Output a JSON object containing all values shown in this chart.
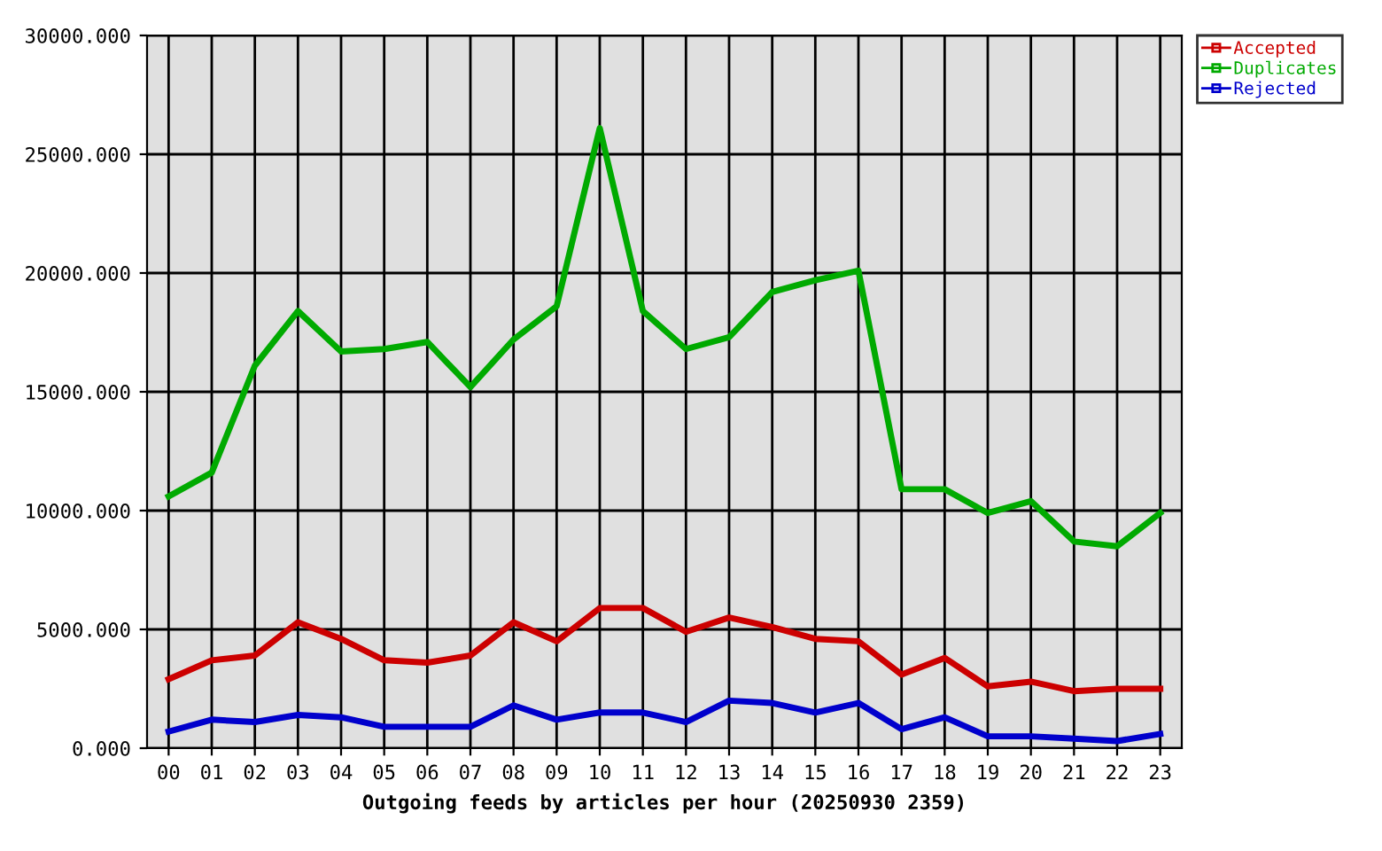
{
  "chart_data": {
    "type": "line",
    "xlabel": "Outgoing feeds by articles per hour (20250930 2359)",
    "categories": [
      "00",
      "01",
      "02",
      "03",
      "04",
      "05",
      "06",
      "07",
      "08",
      "09",
      "10",
      "11",
      "12",
      "13",
      "14",
      "15",
      "16",
      "17",
      "18",
      "19",
      "20",
      "21",
      "22",
      "23"
    ],
    "series": [
      {
        "name": "Accepted",
        "color": "#cc0000",
        "values": [
          2900,
          3700,
          3900,
          5300,
          4600,
          3700,
          3600,
          3900,
          5300,
          4500,
          5900,
          5900,
          4900,
          5500,
          5100,
          4600,
          4500,
          3100,
          3800,
          2600,
          2800,
          2400,
          2500,
          2500
        ]
      },
      {
        "name": "Duplicates",
        "color": "#00aa00",
        "values": [
          10600,
          11600,
          16100,
          18400,
          16700,
          16800,
          17100,
          15200,
          17200,
          18600,
          26100,
          18400,
          16800,
          17300,
          19200,
          19700,
          20100,
          10900,
          10900,
          9900,
          10400,
          8700,
          8500,
          9900
        ]
      },
      {
        "name": "Rejected",
        "color": "#0000cc",
        "values": [
          700,
          1200,
          1100,
          1400,
          1300,
          900,
          900,
          900,
          1800,
          1200,
          1500,
          1500,
          1100,
          2000,
          1900,
          1500,
          1900,
          800,
          1300,
          500,
          500,
          400,
          300,
          600
        ]
      }
    ],
    "ylim": [
      0,
      30000
    ],
    "yticks": [
      {
        "value": 0,
        "label": "0.000"
      },
      {
        "value": 5000,
        "label": "5000.000"
      },
      {
        "value": 10000,
        "label": "10000.000"
      },
      {
        "value": 15000,
        "label": "15000.000"
      },
      {
        "value": 20000,
        "label": "20000.000"
      },
      {
        "value": 25000,
        "label": "25000.000"
      },
      {
        "value": 30000,
        "label": "30000.000"
      }
    ],
    "grid": true,
    "legend": "top right",
    "line_style": "solid"
  }
}
